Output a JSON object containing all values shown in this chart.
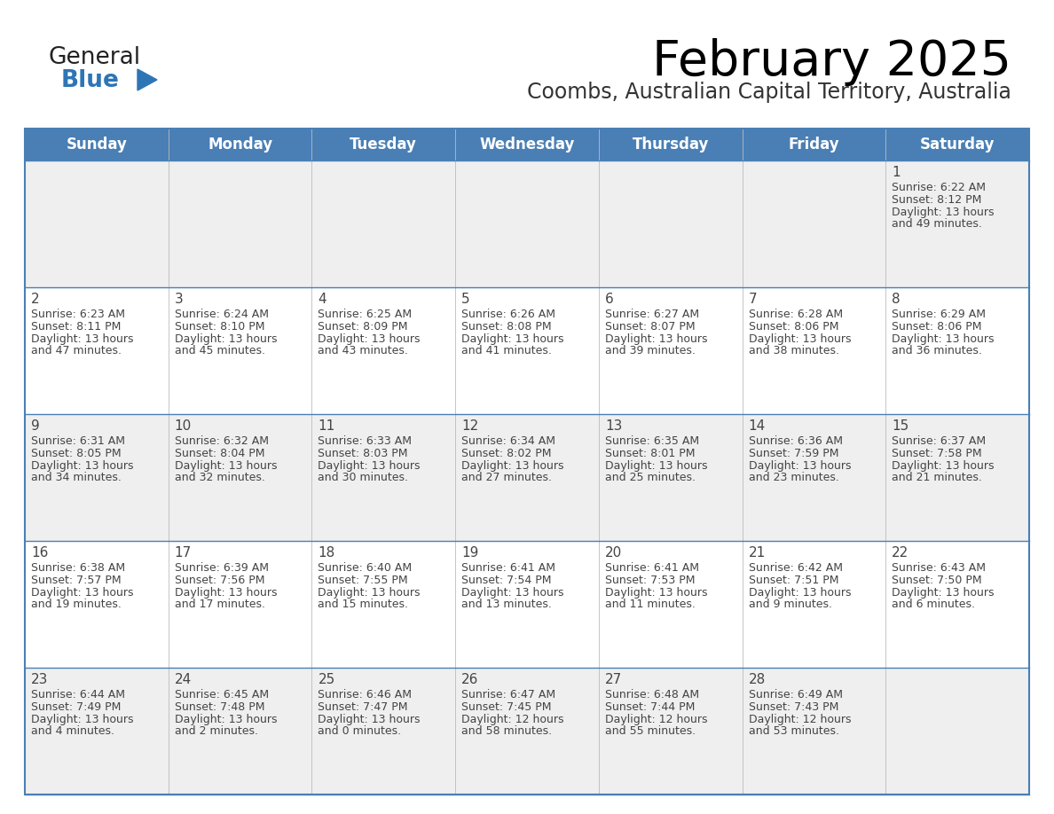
{
  "title": "February 2025",
  "subtitle": "Coombs, Australian Capital Territory, Australia",
  "days_of_week": [
    "Sunday",
    "Monday",
    "Tuesday",
    "Wednesday",
    "Thursday",
    "Friday",
    "Saturday"
  ],
  "header_bg": "#4a7fb5",
  "header_text_color": "#FFFFFF",
  "row_bg_light": "#EFEFEF",
  "row_bg_white": "#FFFFFF",
  "cell_text_color": "#444444",
  "day_num_color": "#444444",
  "border_color": "#4a7fb5",
  "title_color": "#000000",
  "subtitle_color": "#333333",
  "logo_general_color": "#222222",
  "logo_blue_color": "#2E75B6",
  "calendar_data": [
    [
      null,
      null,
      null,
      null,
      null,
      null,
      {
        "day": 1,
        "sunrise": "6:22 AM",
        "sunset": "8:12 PM",
        "daylight_line1": "Daylight: 13 hours",
        "daylight_line2": "and 49 minutes."
      }
    ],
    [
      {
        "day": 2,
        "sunrise": "6:23 AM",
        "sunset": "8:11 PM",
        "daylight_line1": "Daylight: 13 hours",
        "daylight_line2": "and 47 minutes."
      },
      {
        "day": 3,
        "sunrise": "6:24 AM",
        "sunset": "8:10 PM",
        "daylight_line1": "Daylight: 13 hours",
        "daylight_line2": "and 45 minutes."
      },
      {
        "day": 4,
        "sunrise": "6:25 AM",
        "sunset": "8:09 PM",
        "daylight_line1": "Daylight: 13 hours",
        "daylight_line2": "and 43 minutes."
      },
      {
        "day": 5,
        "sunrise": "6:26 AM",
        "sunset": "8:08 PM",
        "daylight_line1": "Daylight: 13 hours",
        "daylight_line2": "and 41 minutes."
      },
      {
        "day": 6,
        "sunrise": "6:27 AM",
        "sunset": "8:07 PM",
        "daylight_line1": "Daylight: 13 hours",
        "daylight_line2": "and 39 minutes."
      },
      {
        "day": 7,
        "sunrise": "6:28 AM",
        "sunset": "8:06 PM",
        "daylight_line1": "Daylight: 13 hours",
        "daylight_line2": "and 38 minutes."
      },
      {
        "day": 8,
        "sunrise": "6:29 AM",
        "sunset": "8:06 PM",
        "daylight_line1": "Daylight: 13 hours",
        "daylight_line2": "and 36 minutes."
      }
    ],
    [
      {
        "day": 9,
        "sunrise": "6:31 AM",
        "sunset": "8:05 PM",
        "daylight_line1": "Daylight: 13 hours",
        "daylight_line2": "and 34 minutes."
      },
      {
        "day": 10,
        "sunrise": "6:32 AM",
        "sunset": "8:04 PM",
        "daylight_line1": "Daylight: 13 hours",
        "daylight_line2": "and 32 minutes."
      },
      {
        "day": 11,
        "sunrise": "6:33 AM",
        "sunset": "8:03 PM",
        "daylight_line1": "Daylight: 13 hours",
        "daylight_line2": "and 30 minutes."
      },
      {
        "day": 12,
        "sunrise": "6:34 AM",
        "sunset": "8:02 PM",
        "daylight_line1": "Daylight: 13 hours",
        "daylight_line2": "and 27 minutes."
      },
      {
        "day": 13,
        "sunrise": "6:35 AM",
        "sunset": "8:01 PM",
        "daylight_line1": "Daylight: 13 hours",
        "daylight_line2": "and 25 minutes."
      },
      {
        "day": 14,
        "sunrise": "6:36 AM",
        "sunset": "7:59 PM",
        "daylight_line1": "Daylight: 13 hours",
        "daylight_line2": "and 23 minutes."
      },
      {
        "day": 15,
        "sunrise": "6:37 AM",
        "sunset": "7:58 PM",
        "daylight_line1": "Daylight: 13 hours",
        "daylight_line2": "and 21 minutes."
      }
    ],
    [
      {
        "day": 16,
        "sunrise": "6:38 AM",
        "sunset": "7:57 PM",
        "daylight_line1": "Daylight: 13 hours",
        "daylight_line2": "and 19 minutes."
      },
      {
        "day": 17,
        "sunrise": "6:39 AM",
        "sunset": "7:56 PM",
        "daylight_line1": "Daylight: 13 hours",
        "daylight_line2": "and 17 minutes."
      },
      {
        "day": 18,
        "sunrise": "6:40 AM",
        "sunset": "7:55 PM",
        "daylight_line1": "Daylight: 13 hours",
        "daylight_line2": "and 15 minutes."
      },
      {
        "day": 19,
        "sunrise": "6:41 AM",
        "sunset": "7:54 PM",
        "daylight_line1": "Daylight: 13 hours",
        "daylight_line2": "and 13 minutes."
      },
      {
        "day": 20,
        "sunrise": "6:41 AM",
        "sunset": "7:53 PM",
        "daylight_line1": "Daylight: 13 hours",
        "daylight_line2": "and 11 minutes."
      },
      {
        "day": 21,
        "sunrise": "6:42 AM",
        "sunset": "7:51 PM",
        "daylight_line1": "Daylight: 13 hours",
        "daylight_line2": "and 9 minutes."
      },
      {
        "day": 22,
        "sunrise": "6:43 AM",
        "sunset": "7:50 PM",
        "daylight_line1": "Daylight: 13 hours",
        "daylight_line2": "and 6 minutes."
      }
    ],
    [
      {
        "day": 23,
        "sunrise": "6:44 AM",
        "sunset": "7:49 PM",
        "daylight_line1": "Daylight: 13 hours",
        "daylight_line2": "and 4 minutes."
      },
      {
        "day": 24,
        "sunrise": "6:45 AM",
        "sunset": "7:48 PM",
        "daylight_line1": "Daylight: 13 hours",
        "daylight_line2": "and 2 minutes."
      },
      {
        "day": 25,
        "sunrise": "6:46 AM",
        "sunset": "7:47 PM",
        "daylight_line1": "Daylight: 13 hours",
        "daylight_line2": "and 0 minutes."
      },
      {
        "day": 26,
        "sunrise": "6:47 AM",
        "sunset": "7:45 PM",
        "daylight_line1": "Daylight: 12 hours",
        "daylight_line2": "and 58 minutes."
      },
      {
        "day": 27,
        "sunrise": "6:48 AM",
        "sunset": "7:44 PM",
        "daylight_line1": "Daylight: 12 hours",
        "daylight_line2": "and 55 minutes."
      },
      {
        "day": 28,
        "sunrise": "6:49 AM",
        "sunset": "7:43 PM",
        "daylight_line1": "Daylight: 12 hours",
        "daylight_line2": "and 53 minutes."
      },
      null
    ]
  ],
  "num_rows": 5,
  "num_cols": 7
}
